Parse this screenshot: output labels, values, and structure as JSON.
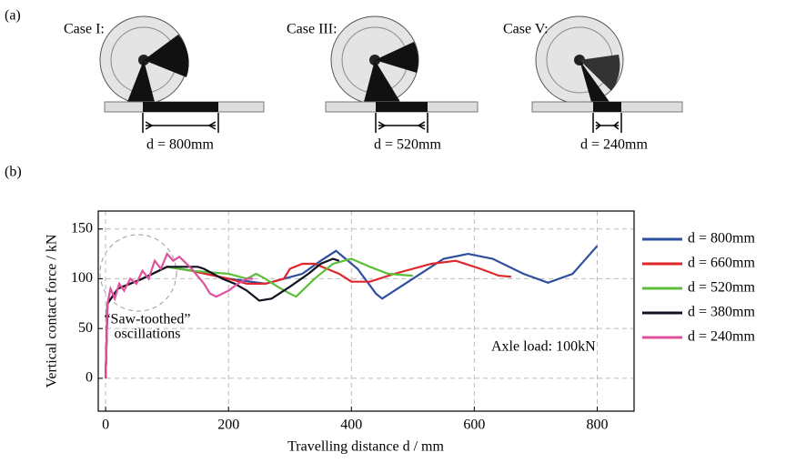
{
  "panel_a": {
    "label": "(a)",
    "cases": [
      {
        "label": "Case I:",
        "dimension": "d = 800mm"
      },
      {
        "label": "Case III:",
        "dimension": "d = 520mm"
      },
      {
        "label": "Case V:",
        "dimension": "d = 240mm"
      }
    ]
  },
  "chart_data": {
    "type": "line",
    "panel_label": "(b)",
    "x_label": "Travelling distance d / mm",
    "y_label": "Vertical contact force / kN",
    "annotations": [
      "“Saw-toothed”",
      "oscillations",
      "Axle load: 100kN"
    ],
    "xlim": [
      -12,
      860
    ],
    "xticks": [
      0,
      200,
      400,
      600,
      800
    ],
    "ylim": [
      -33,
      168
    ],
    "yticks": [
      0,
      50,
      100,
      150
    ],
    "grid": true,
    "series": [
      {
        "name": "d = 800mm",
        "color": "#2e4fa0",
        "x": [
          0,
          3,
          20,
          60,
          100,
          140,
          200,
          260,
          320,
          350,
          375,
          410,
          440,
          450,
          500,
          550,
          590,
          630,
          680,
          720,
          760,
          800
        ],
        "values": [
          0,
          75,
          90,
          100,
          112,
          108,
          100,
          95,
          105,
          118,
          128,
          110,
          85,
          80,
          100,
          120,
          125,
          120,
          105,
          96,
          105,
          133
        ]
      },
      {
        "name": "d = 660mm",
        "color": "#e0262a",
        "x": [
          0,
          3,
          20,
          60,
          100,
          140,
          200,
          230,
          260,
          290,
          300,
          320,
          340,
          360,
          380,
          400,
          430,
          470,
          530,
          570,
          610,
          640,
          660
        ],
        "values": [
          0,
          75,
          90,
          100,
          112,
          108,
          100,
          95,
          95,
          100,
          110,
          115,
          115,
          110,
          105,
          97,
          97,
          105,
          115,
          118,
          110,
          103,
          102
        ]
      },
      {
        "name": "d = 520mm",
        "color": "#5cbf3a",
        "x": [
          0,
          3,
          20,
          60,
          100,
          140,
          200,
          230,
          245,
          260,
          280,
          300,
          310,
          340,
          370,
          400,
          430,
          460,
          500
        ],
        "values": [
          0,
          75,
          90,
          100,
          112,
          108,
          105,
          100,
          105,
          100,
          92,
          85,
          82,
          100,
          115,
          120,
          112,
          105,
          103
        ]
      },
      {
        "name": "d = 380mm",
        "color": "#111122",
        "x": [
          0,
          3,
          20,
          60,
          100,
          150,
          160,
          175,
          190,
          210,
          230,
          250,
          270,
          300,
          330,
          350,
          370,
          380
        ],
        "values": [
          0,
          75,
          90,
          100,
          112,
          112,
          110,
          105,
          100,
          95,
          88,
          78,
          80,
          92,
          105,
          115,
          120,
          118
        ]
      },
      {
        "name": "d = 240mm",
        "color": "#e0509c",
        "x": [
          0,
          3,
          8,
          15,
          22,
          30,
          40,
          50,
          60,
          70,
          80,
          90,
          100,
          110,
          120,
          140,
          160,
          170,
          180,
          200,
          215,
          230,
          240
        ],
        "values": [
          0,
          75,
          90,
          80,
          95,
          88,
          100,
          95,
          108,
          100,
          118,
          110,
          125,
          118,
          122,
          110,
          95,
          85,
          82,
          88,
          95,
          100,
          100
        ]
      }
    ]
  }
}
